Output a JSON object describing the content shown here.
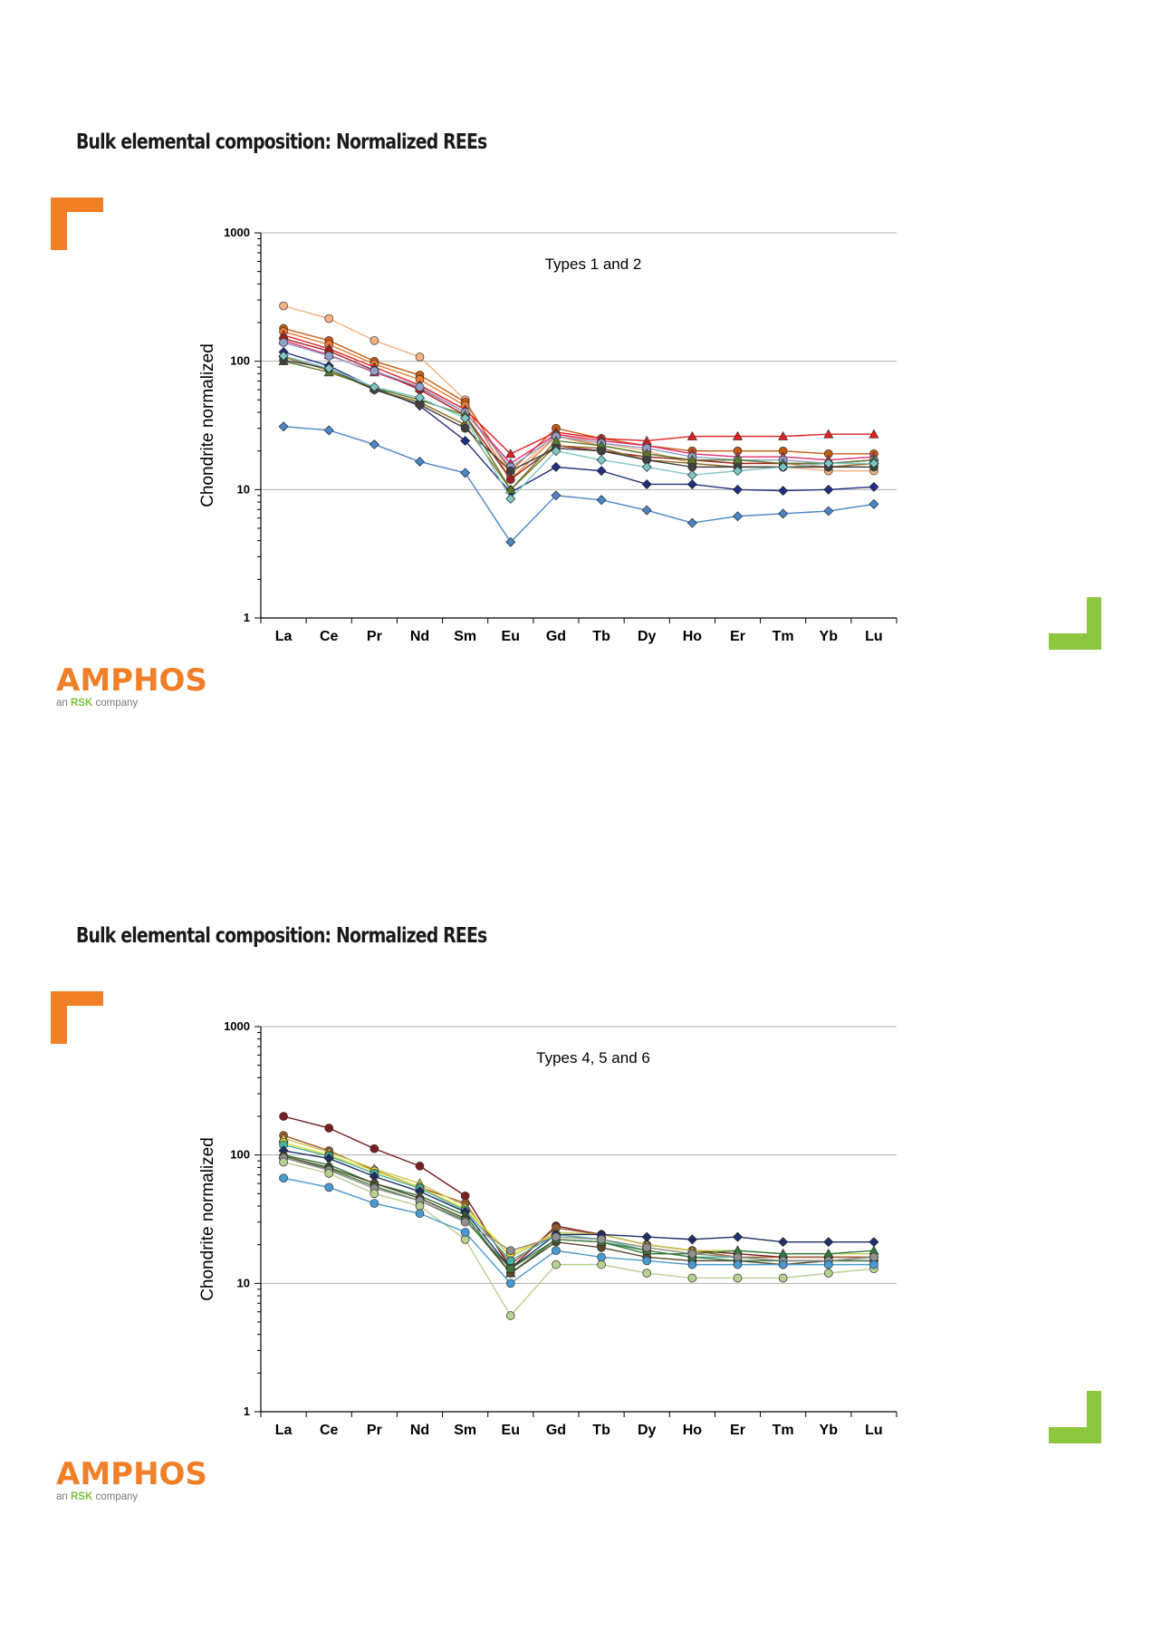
{
  "slides": [
    {
      "title": "Bulk elemental composition: Normalized REEs",
      "logo": {
        "name": "AMPHOS",
        "sub_prefix": "an",
        "sub_brand": "RSK",
        "sub_suffix": "company"
      },
      "colors": {
        "orange": "#f07f28",
        "green": "#8dc63f"
      }
    },
    {
      "title": "Bulk elemental composition: Normalized REEs",
      "logo": {
        "name": "AMPHOS",
        "sub_prefix": "an",
        "sub_brand": "RSK",
        "sub_suffix": "company"
      },
      "colors": {
        "orange": "#f07f28",
        "green": "#8dc63f"
      }
    }
  ],
  "chart_data": [
    {
      "type": "line",
      "annotation": "Types 1 and 2",
      "ylabel": "Chondrite normalized",
      "xlabel": "",
      "yscale": "log",
      "ylim": [
        1,
        1000
      ],
      "yticks": [
        "1",
        "10",
        "100",
        "1000"
      ],
      "categories": [
        "La",
        "Ce",
        "Pr",
        "Nd",
        "Sm",
        "Eu",
        "Gd",
        "Tb",
        "Dy",
        "Ho",
        "Er",
        "Tm",
        "Yb",
        "Lu"
      ],
      "series": [
        {
          "color": "#f4b183",
          "marker": "circle",
          "values": [
            270,
            215,
            145,
            108,
            50,
            13,
            27,
            23,
            20,
            16,
            15,
            15,
            14,
            14
          ]
        },
        {
          "color": "#c55a11",
          "marker": "circle",
          "values": [
            180,
            145,
            100,
            78,
            48,
            14,
            30,
            25,
            22,
            20,
            20,
            20,
            19,
            19
          ]
        },
        {
          "color": "#ed7d31",
          "marker": "circle",
          "values": [
            170,
            135,
            95,
            72,
            45,
            12,
            26,
            22,
            19,
            17,
            16,
            16,
            15,
            16
          ]
        },
        {
          "color": "#e02020",
          "marker": "triangle",
          "values": [
            160,
            125,
            90,
            65,
            42,
            19,
            28,
            25,
            24,
            26,
            26,
            26,
            27,
            27
          ]
        },
        {
          "color": "#e03070",
          "marker": "triangle",
          "values": [
            145,
            112,
            82,
            62,
            40,
            16,
            27,
            24,
            22,
            19,
            18,
            18,
            17,
            18
          ]
        },
        {
          "color": "#a02020",
          "marker": "circle",
          "values": [
            150,
            120,
            85,
            60,
            38,
            12,
            22,
            20,
            18,
            17,
            16,
            16,
            16,
            17
          ]
        },
        {
          "color": "#8fa0c8",
          "marker": "circle",
          "values": [
            140,
            110,
            84,
            63,
            40,
            15,
            26,
            23,
            21,
            18,
            17,
            17,
            16,
            17
          ]
        },
        {
          "color": "#203080",
          "marker": "diamond",
          "values": [
            118,
            92,
            62,
            45,
            24,
            9.5,
            15,
            14,
            11,
            11,
            10,
            9.8,
            10,
            10.5
          ]
        },
        {
          "color": "#8c6d1f",
          "marker": "diamond",
          "values": [
            108,
            85,
            60,
            48,
            32,
            10,
            22,
            21,
            17,
            16,
            15,
            15,
            15,
            16
          ]
        },
        {
          "color": "#5a7d2a",
          "marker": "triangle",
          "values": [
            100,
            82,
            62,
            50,
            38,
            10,
            24,
            22,
            19,
            17,
            17,
            16,
            16,
            17
          ]
        },
        {
          "color": "#404040",
          "marker": "circle",
          "values": [
            102,
            88,
            60,
            46,
            30,
            14,
            21,
            20,
            17,
            15,
            15,
            15,
            15,
            15
          ]
        },
        {
          "color": "#7fc7c7",
          "marker": "diamond",
          "values": [
            110,
            88,
            63,
            52,
            36,
            8.5,
            20,
            17,
            15,
            13,
            14,
            15,
            16,
            16
          ]
        },
        {
          "color": "#4a86c8",
          "marker": "diamond",
          "values": [
            31,
            29,
            22.5,
            16.5,
            13.5,
            3.9,
            9,
            8.3,
            6.9,
            5.5,
            6.2,
            6.5,
            6.8,
            7.7
          ]
        }
      ]
    },
    {
      "type": "line",
      "annotation": "Types 4, 5 and 6",
      "ylabel": "Chondrite normalized",
      "xlabel": "",
      "yscale": "log",
      "ylim": [
        1,
        1000
      ],
      "yticks": [
        "1",
        "10",
        "100",
        "1000"
      ],
      "categories": [
        "La",
        "Ce",
        "Pr",
        "Nd",
        "Sm",
        "Eu",
        "Gd",
        "Tb",
        "Dy",
        "Ho",
        "Er",
        "Tm",
        "Yb",
        "Lu"
      ],
      "series": [
        {
          "color": "#7a1f1f",
          "marker": "circle",
          "values": [
            200,
            162,
            112,
            82,
            48,
            13,
            28,
            24,
            20,
            18,
            17,
            16,
            16,
            16
          ]
        },
        {
          "color": "#a05a2a",
          "marker": "circle",
          "values": [
            142,
            108,
            76,
            56,
            42,
            14,
            27,
            24,
            20,
            18,
            16,
            16,
            16,
            16
          ]
        },
        {
          "color": "#c8c850",
          "marker": "triangle",
          "values": [
            135,
            105,
            78,
            60,
            40,
            16,
            25,
            24,
            20,
            18,
            18,
            17,
            17,
            17
          ]
        },
        {
          "color": "#e8e030",
          "marker": "circle",
          "values": [
            125,
            100,
            75,
            56,
            38,
            17,
            24,
            22,
            19,
            17,
            16,
            15,
            15,
            16
          ]
        },
        {
          "color": "#4ab0a0",
          "marker": "circle",
          "values": [
            120,
            98,
            72,
            55,
            37,
            15,
            24,
            22,
            18,
            16,
            16,
            15,
            15,
            16
          ]
        },
        {
          "color": "#1f2f6a",
          "marker": "diamond",
          "values": [
            108,
            94,
            68,
            52,
            36,
            13,
            24,
            24,
            23,
            22,
            23,
            21,
            21,
            21
          ]
        },
        {
          "color": "#2f7a3a",
          "marker": "triangle",
          "values": [
            100,
            84,
            60,
            48,
            34,
            12,
            22,
            21,
            17,
            17,
            18,
            17,
            17,
            18
          ]
        },
        {
          "color": "#5a4a2a",
          "marker": "circle",
          "values": [
            98,
            80,
            60,
            46,
            32,
            12,
            21,
            19,
            16,
            15,
            15,
            14,
            15,
            15
          ]
        },
        {
          "color": "#407a40",
          "marker": "square",
          "values": [
            95,
            78,
            57,
            44,
            31,
            13,
            22,
            21,
            18,
            16,
            15,
            15,
            15,
            15
          ]
        },
        {
          "color": "#909090",
          "marker": "circle",
          "values": [
            95,
            76,
            55,
            44,
            30,
            18,
            23,
            22,
            19,
            17,
            16,
            15,
            15,
            16
          ]
        },
        {
          "color": "#b8d090",
          "marker": "circle",
          "values": [
            88,
            72,
            50,
            40,
            22,
            5.6,
            14,
            14,
            12,
            11,
            11,
            11,
            12,
            13
          ]
        },
        {
          "color": "#4a9ad0",
          "marker": "circle",
          "values": [
            66,
            56,
            42,
            35,
            25,
            10,
            18,
            16,
            15,
            14,
            14,
            14,
            14,
            14
          ]
        }
      ]
    }
  ]
}
